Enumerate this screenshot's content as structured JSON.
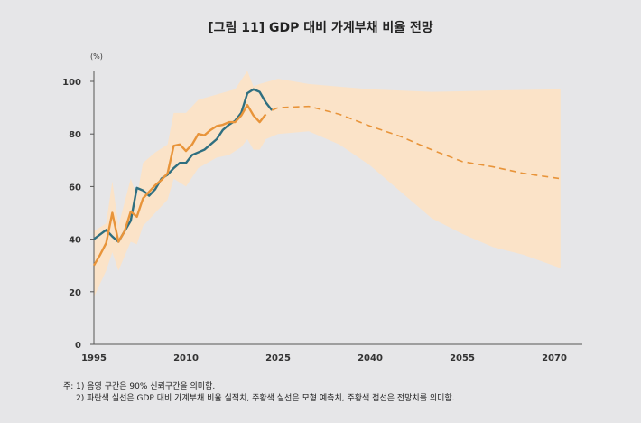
{
  "title": "[그림 11] GDP 대비 가계부채 비율 전망",
  "notes": [
    "주: 1) 음영 구간은 90% 신뢰구간을 의미함.",
    "2) 파란색 실선은 GDP 대비 가계부채 비율 실적치, 주황색 실선은 모형 예측치, 주황색 점선은 전망치를 의미함."
  ],
  "chart_data": {
    "type": "line",
    "title": "[그림 11] GDP 대비 가계부채 비율 전망",
    "ylabel": "(%)",
    "xlabel": "",
    "ylim": [
      0,
      100
    ],
    "xlim": [
      1995,
      2075
    ],
    "yticks": [
      0,
      20,
      40,
      60,
      80,
      100
    ],
    "xticks": [
      1995,
      2010,
      2025,
      2040,
      2055,
      2070
    ],
    "grid": false,
    "colors": {
      "actual": "#2f6f80",
      "model": "#e8943a",
      "forecast": "#e8943a",
      "band": "#fbe3c8"
    },
    "series": [
      {
        "key": "actual",
        "style": "solid",
        "x": [
          1995,
          1997,
          1998,
          1999,
          2000,
          2001,
          2002,
          2003,
          2004,
          2005,
          2006,
          2007,
          2008,
          2009,
          2010,
          2011,
          2012,
          2013,
          2014,
          2015,
          2016,
          2017,
          2018,
          2019,
          2020,
          2021,
          2022,
          2023,
          2024
        ],
        "y": [
          40,
          43.5,
          41,
          39,
          43,
          47,
          59.5,
          58.5,
          56.5,
          59,
          63,
          64.5,
          67,
          69,
          69,
          72,
          73,
          74,
          76,
          78,
          81.5,
          83.5,
          85,
          88,
          95.5,
          97,
          96,
          92,
          89
        ]
      },
      {
        "key": "model",
        "style": "solid",
        "x": [
          1995,
          1996,
          1997,
          1998,
          1999,
          2000,
          2001,
          2002,
          2003,
          2004,
          2005,
          2006,
          2007,
          2008,
          2009,
          2010,
          2011,
          2012,
          2013,
          2014,
          2015,
          2016,
          2017,
          2018,
          2019,
          2020,
          2021,
          2022,
          2023
        ],
        "y": [
          30,
          34,
          38.5,
          50,
          39,
          43,
          50.5,
          48.5,
          55.5,
          58,
          60.5,
          62.5,
          65,
          75.5,
          76,
          73.5,
          76,
          80,
          79.5,
          81.5,
          83,
          83.5,
          84.5,
          84.5,
          87,
          91,
          87,
          84.5,
          87.5
        ]
      },
      {
        "key": "forecast",
        "style": "dashed",
        "x": [
          2024,
          2025,
          2030,
          2035,
          2040,
          2045,
          2050,
          2055,
          2060,
          2065,
          2071
        ],
        "y": [
          89,
          90,
          90.5,
          87.5,
          83,
          79,
          74,
          69.5,
          67.5,
          65,
          63
        ]
      }
    ],
    "band": {
      "upper": {
        "x": [
          1995,
          1997,
          1998,
          1999,
          2001,
          2002,
          2003,
          2005,
          2007,
          2008,
          2010,
          2012,
          2015,
          2018,
          2020,
          2021,
          2022,
          2025,
          2030,
          2040,
          2050,
          2060,
          2071
        ],
        "y": [
          43,
          46,
          62,
          45,
          63,
          56,
          69,
          73,
          76,
          88,
          88,
          93,
          95,
          97,
          104,
          98,
          99,
          101,
          99,
          97,
          96,
          96.5,
          97
        ]
      },
      "lower": {
        "x": [
          1995,
          1997,
          1998,
          1999,
          2001,
          2002,
          2003,
          2005,
          2007,
          2008,
          2010,
          2012,
          2015,
          2017,
          2019,
          2020,
          2021,
          2022,
          2023,
          2025,
          2030,
          2035,
          2040,
          2045,
          2050,
          2055,
          2060,
          2065,
          2071
        ],
        "y": [
          18,
          28,
          35,
          28,
          39,
          38,
          45,
          50,
          55,
          63,
          60,
          67,
          71,
          72,
          75,
          78,
          74,
          74,
          78,
          80,
          81,
          76,
          68,
          58,
          48,
          42,
          37,
          34,
          29
        ]
      }
    }
  }
}
